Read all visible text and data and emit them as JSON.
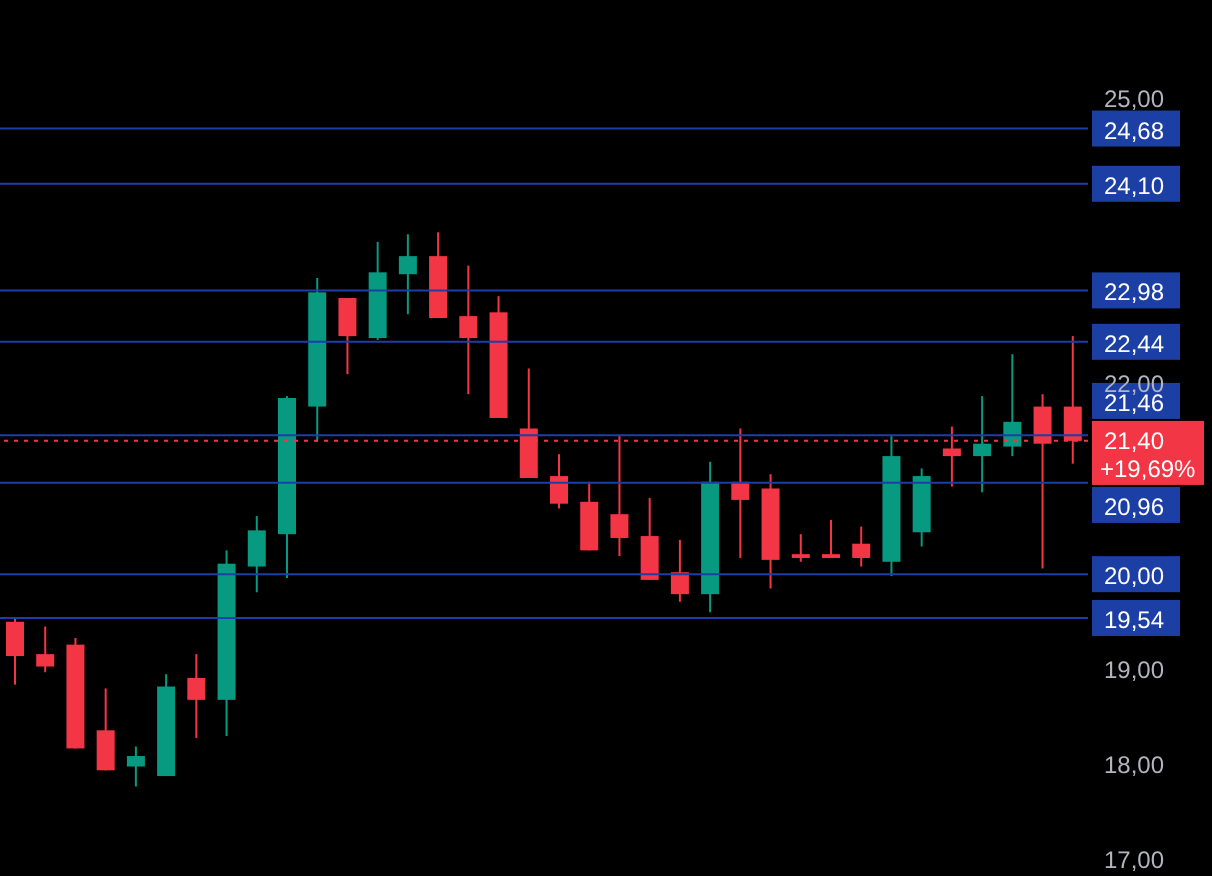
{
  "chart_data": {
    "type": "candlestick",
    "categories": [
      null,
      null,
      null,
      null,
      null,
      null,
      null,
      null,
      null,
      null,
      null,
      null,
      null,
      null,
      null,
      null,
      null,
      null,
      null,
      null,
      null,
      null,
      null,
      null,
      null,
      null,
      null,
      null,
      null,
      null,
      null,
      null,
      null,
      null,
      null,
      null
    ],
    "ohlc": [
      [
        19.5,
        19.54,
        18.84,
        19.14
      ],
      [
        19.16,
        19.45,
        18.97,
        19.03
      ],
      [
        19.26,
        19.33,
        18.17,
        18.17
      ],
      [
        18.36,
        18.8,
        17.94,
        17.94
      ],
      [
        17.98,
        18.19,
        17.77,
        18.09
      ],
      [
        17.88,
        18.95,
        17.88,
        18.82
      ],
      [
        18.91,
        19.16,
        18.28,
        18.68
      ],
      [
        18.68,
        20.25,
        18.3,
        20.11
      ],
      [
        20.08,
        20.61,
        19.81,
        20.46
      ],
      [
        20.42,
        21.87,
        19.96,
        21.85
      ],
      [
        21.76,
        23.11,
        21.39,
        22.96
      ],
      [
        22.9,
        22.9,
        22.1,
        22.5
      ],
      [
        22.48,
        23.49,
        22.46,
        23.17
      ],
      [
        23.15,
        23.57,
        22.73,
        23.34
      ],
      [
        23.34,
        23.59,
        22.69,
        22.69
      ],
      [
        22.71,
        23.24,
        21.89,
        22.48
      ],
      [
        22.75,
        22.92,
        21.64,
        21.64
      ],
      [
        21.53,
        22.16,
        21.01,
        21.01
      ],
      [
        21.03,
        21.26,
        20.69,
        20.74
      ],
      [
        20.76,
        20.97,
        20.25,
        20.25
      ],
      [
        20.63,
        21.45,
        20.19,
        20.38
      ],
      [
        20.4,
        20.8,
        19.94,
        19.94
      ],
      [
        20.02,
        20.36,
        19.71,
        19.79
      ],
      [
        19.79,
        21.18,
        19.6,
        20.97
      ],
      [
        20.97,
        21.53,
        20.17,
        20.78
      ],
      [
        20.9,
        21.05,
        19.85,
        20.15
      ],
      [
        20.21,
        20.42,
        20.13,
        20.17
      ],
      [
        20.21,
        20.57,
        20.17,
        20.17
      ],
      [
        20.32,
        20.5,
        20.08,
        20.17
      ],
      [
        20.13,
        21.45,
        19.98,
        21.24
      ],
      [
        20.44,
        21.11,
        20.29,
        21.03
      ],
      [
        21.32,
        21.55,
        20.92,
        21.24
      ],
      [
        21.24,
        21.87,
        20.86,
        21.37
      ],
      [
        21.34,
        22.31,
        21.24,
        21.6
      ],
      [
        21.76,
        21.89,
        20.06,
        21.37
      ],
      [
        21.76,
        22.5,
        21.16,
        21.4
      ]
    ],
    "colors": [
      "#f23645",
      "#f23645",
      "#f23645",
      "#f23645",
      "#089981",
      "#089981",
      "#f23645",
      "#089981",
      "#089981",
      "#089981",
      "#089981",
      "#f23645",
      "#089981",
      "#089981",
      "#f23645",
      "#f23645",
      "#f23645",
      "#f23645",
      "#f23645",
      "#f23645",
      "#f23645",
      "#f23645",
      "#f23645",
      "#089981",
      "#f23645",
      "#f23645",
      "#f23645",
      "#f23645",
      "#f23645",
      "#089981",
      "#089981",
      "#f23645",
      "#089981",
      "#089981",
      "#f23645",
      "#f23645"
    ],
    "ylim": [
      16.83,
      26.03
    ],
    "yticks": [
      {
        "value": 17,
        "label": "17,00"
      },
      {
        "value": 18,
        "label": "18,00"
      },
      {
        "value": 19,
        "label": "19,00"
      },
      {
        "value": 22,
        "label": "22,00"
      },
      {
        "value": 25,
        "label": "25,00"
      }
    ],
    "tick_labels": "y",
    "ref_lines": [
      {
        "axis": "y",
        "value": 24.68,
        "label": "24,68",
        "color": "#1c3fa6",
        "line_style": "solid"
      },
      {
        "axis": "y",
        "value": 24.1,
        "label": "24,10",
        "color": "#1c3fa6",
        "line_style": "solid"
      },
      {
        "axis": "y",
        "value": 22.98,
        "label": "22,98",
        "color": "#1c3fa6",
        "line_style": "solid"
      },
      {
        "axis": "y",
        "value": 22.44,
        "label": "22,44",
        "color": "#1c3fa6",
        "line_style": "solid"
      },
      {
        "axis": "y",
        "value": 21.46,
        "label": "21,46",
        "color": "#1c3fa6",
        "line_style": "solid"
      },
      {
        "axis": "y",
        "value": 20.96,
        "label": "20,96",
        "color": "#1c3fa6",
        "line_style": "solid"
      },
      {
        "axis": "y",
        "value": 20.0,
        "label": "20,00",
        "color": "#1c3fa6",
        "line_style": "solid"
      },
      {
        "axis": "y",
        "value": 19.54,
        "label": "19,54",
        "color": "#1c3fa6",
        "line_style": "solid"
      },
      {
        "axis": "y",
        "value": 21.4,
        "label": "21,40",
        "color": "#f23645",
        "line_style": "dotted"
      }
    ],
    "annotations": [
      "+19,69%"
    ]
  }
}
